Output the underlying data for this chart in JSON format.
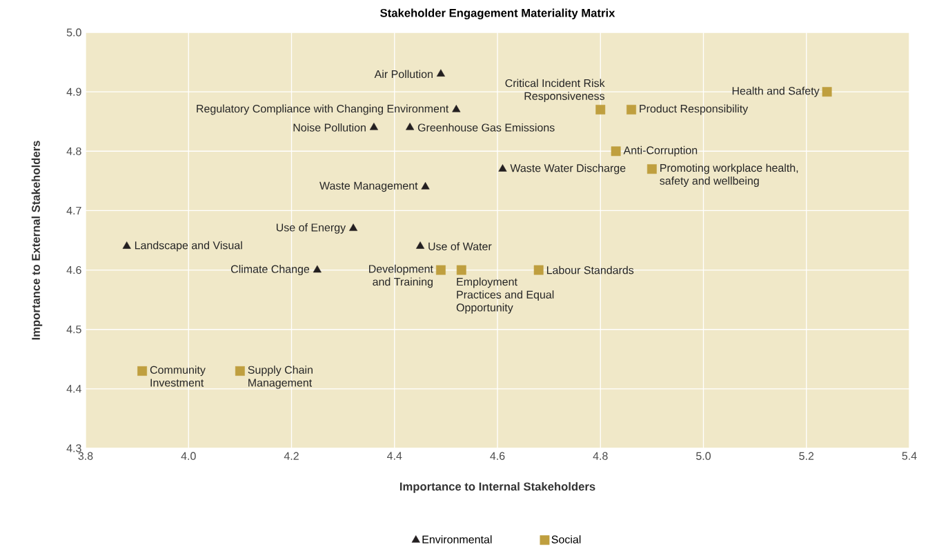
{
  "chart_data": {
    "type": "scatter",
    "title": "Stakeholder Engagement Materiality Matrix",
    "xlabel": "Importance to Internal Stakeholders",
    "ylabel": "Importance to External Stakeholders",
    "xlim": [
      3.8,
      5.4
    ],
    "ylim": [
      4.3,
      5.0
    ],
    "xticks": [
      {
        "value": 3.8,
        "label": "3.8"
      },
      {
        "value": 4.0,
        "label": "4.0"
      },
      {
        "value": 4.2,
        "label": "4.2"
      },
      {
        "value": 4.4,
        "label": "4.4"
      },
      {
        "value": 4.6,
        "label": "4.6"
      },
      {
        "value": 4.8,
        "label": "4.8"
      },
      {
        "value": 5.0,
        "label": "5.0"
      },
      {
        "value": 5.2,
        "label": "5.2"
      },
      {
        "value": 5.4,
        "label": "5.4"
      }
    ],
    "yticks": [
      {
        "value": 4.3,
        "label": "4.3"
      },
      {
        "value": 4.4,
        "label": "4.4"
      },
      {
        "value": 4.5,
        "label": "4.5"
      },
      {
        "value": 4.6,
        "label": "4.6"
      },
      {
        "value": 4.7,
        "label": "4.7"
      },
      {
        "value": 4.8,
        "label": "4.8"
      },
      {
        "value": 4.9,
        "label": "4.9"
      },
      {
        "value": 5.0,
        "label": "5.0"
      }
    ],
    "grid": true,
    "legend": "bottom",
    "series": [
      {
        "name": "Environmental",
        "color": "#231f20",
        "marker": "triangle",
        "x": [
          4.49,
          4.52,
          4.36,
          4.43,
          4.61,
          4.46,
          4.32,
          3.88,
          4.45,
          4.25
        ],
        "values": [
          4.93,
          4.87,
          4.84,
          4.84,
          4.77,
          4.74,
          4.67,
          4.64,
          4.64,
          4.6
        ]
      },
      {
        "name": "Social",
        "color": "#bf9f3f",
        "marker": "square",
        "x": [
          5.24,
          4.8,
          4.86,
          4.83,
          4.9,
          4.68,
          4.49,
          4.53,
          3.91,
          4.1
        ],
        "values": [
          4.9,
          4.87,
          4.87,
          4.8,
          4.77,
          4.6,
          4.6,
          4.6,
          4.43,
          4.43
        ]
      }
    ],
    "annotations": [
      {
        "text": "Air Pollution",
        "x": 4.49,
        "y": 4.93
      },
      {
        "text": "Regulatory Compliance with Changing Environment",
        "x": 4.52,
        "y": 4.87
      },
      {
        "text": "Noise Pollution",
        "x": 4.36,
        "y": 4.84
      },
      {
        "text": "Greenhouse Gas Emissions",
        "x": 4.43,
        "y": 4.84
      },
      {
        "text": "Waste Water Discharge",
        "x": 4.61,
        "y": 4.77
      },
      {
        "text": "Waste Management",
        "x": 4.46,
        "y": 4.74
      },
      {
        "text": "Use of Energy",
        "x": 4.32,
        "y": 4.67
      },
      {
        "text": "Landscape and Visual",
        "x": 3.88,
        "y": 4.64
      },
      {
        "text": "Use of Water",
        "x": 4.45,
        "y": 4.64
      },
      {
        "text": "Climate Change",
        "x": 4.25,
        "y": 4.6
      },
      {
        "text": "Health and Safety",
        "x": 5.24,
        "y": 4.9
      },
      {
        "text": "Critical Incident Risk Responsiveness",
        "x": 4.8,
        "y": 4.87
      },
      {
        "text": "Product Responsibility",
        "x": 4.86,
        "y": 4.87
      },
      {
        "text": "Anti-Corruption",
        "x": 4.83,
        "y": 4.8
      },
      {
        "text": "Promoting workplace health, safety and wellbeing",
        "x": 4.9,
        "y": 4.77
      },
      {
        "text": "Labour Standards",
        "x": 4.68,
        "y": 4.6
      },
      {
        "text": "Development and Training",
        "x": 4.49,
        "y": 4.6
      },
      {
        "text": "Employment Practices and Equal Opportunity",
        "x": 4.53,
        "y": 4.6
      },
      {
        "text": "Community Investment",
        "x": 3.91,
        "y": 4.43
      },
      {
        "text": "Supply Chain Management",
        "x": 4.1,
        "y": 4.43
      }
    ]
  }
}
